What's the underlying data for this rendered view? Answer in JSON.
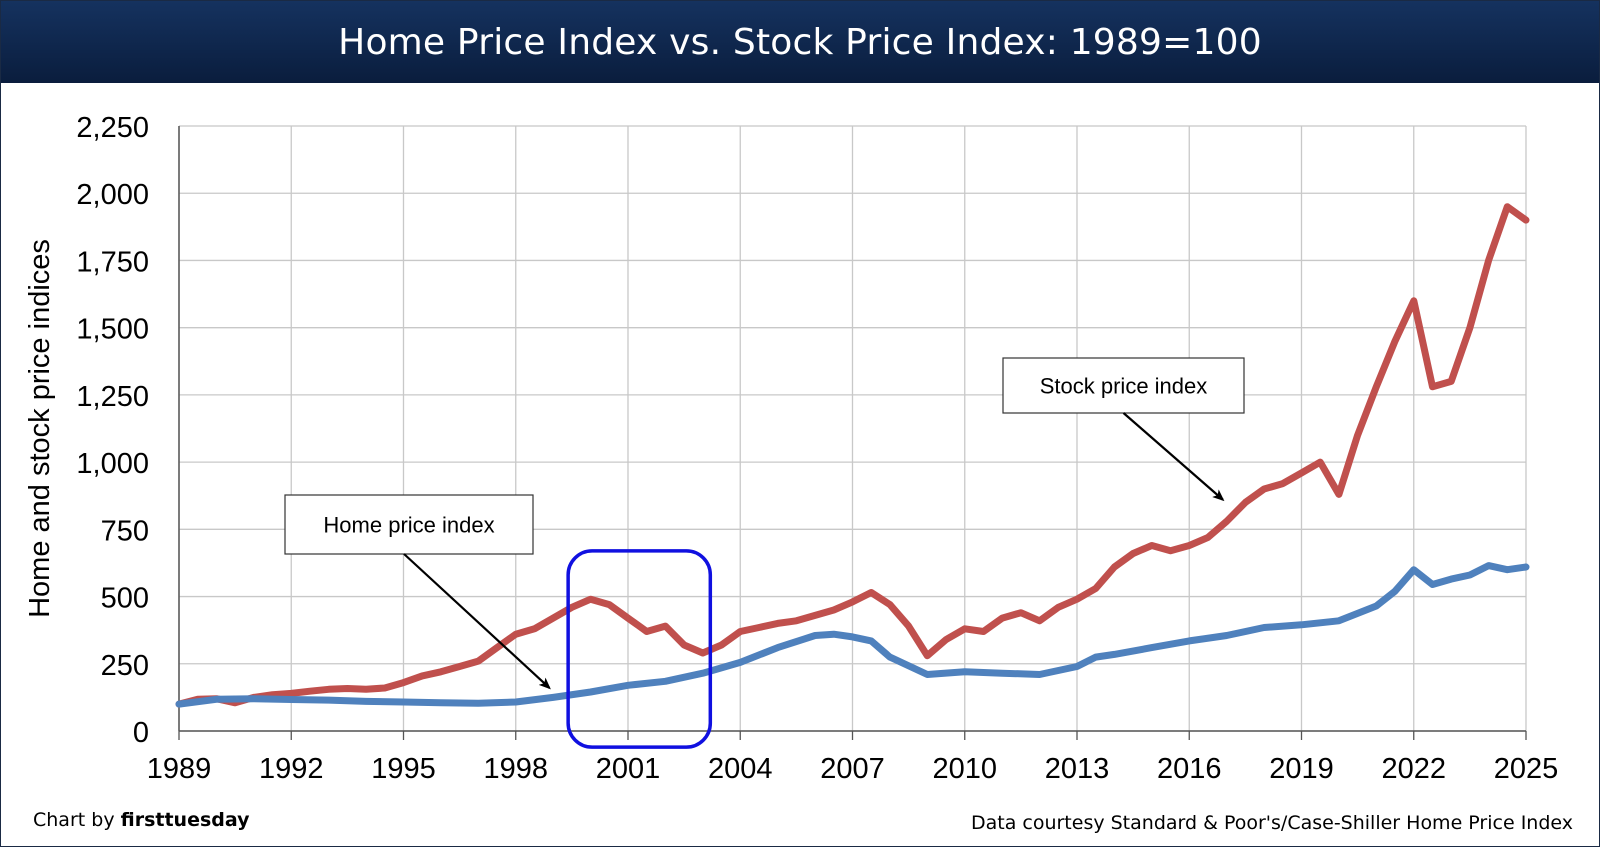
{
  "chart_data": {
    "type": "line",
    "title": "Home Price Index vs. Stock Price Index: 1989=100",
    "xlabel": "",
    "ylabel": "Home and stock price indices",
    "xlim": [
      1989,
      2025
    ],
    "ylim": [
      0,
      2250
    ],
    "x_ticks": [
      "1989",
      "1992",
      "1995",
      "1998",
      "2001",
      "2004",
      "2007",
      "2010",
      "2013",
      "2016",
      "2019",
      "2022",
      "2025"
    ],
    "y_ticks": [
      "0",
      "250",
      "500",
      "750",
      "1,000",
      "1,250",
      "1,500",
      "1,750",
      "2,000",
      "2,250"
    ],
    "grid": true,
    "colors": {
      "stock": "#c0504d",
      "home": "#4f81bd",
      "highlight": "#1010e0"
    },
    "series": [
      {
        "name": "Stock price index",
        "x": [
          1989,
          1989.5,
          1990,
          1990.5,
          1991,
          1991.5,
          1992,
          1992.5,
          1993,
          1993.5,
          1994,
          1994.5,
          1995,
          1995.5,
          1996,
          1996.5,
          1997,
          1997.5,
          1998,
          1998.5,
          1999,
          1999.5,
          2000,
          2000.5,
          2001,
          2001.5,
          2002,
          2002.5,
          2003,
          2003.5,
          2004,
          2004.5,
          2005,
          2005.5,
          2006,
          2006.5,
          2007,
          2007.5,
          2008,
          2008.5,
          2009,
          2009.5,
          2010,
          2010.5,
          2011,
          2011.5,
          2012,
          2012.5,
          2013,
          2013.5,
          2014,
          2014.5,
          2015,
          2015.5,
          2016,
          2016.5,
          2017,
          2017.5,
          2018,
          2018.5,
          2019,
          2019.5,
          2020,
          2020.5,
          2021,
          2021.5,
          2022,
          2022.5,
          2023,
          2023.5,
          2024,
          2024.5,
          2025
        ],
        "values": [
          100,
          118,
          120,
          105,
          125,
          135,
          140,
          148,
          155,
          158,
          155,
          160,
          180,
          205,
          220,
          240,
          260,
          310,
          360,
          380,
          420,
          460,
          490,
          470,
          420,
          370,
          390,
          320,
          290,
          320,
          370,
          385,
          400,
          410,
          430,
          450,
          480,
          515,
          470,
          390,
          280,
          340,
          380,
          370,
          420,
          440,
          410,
          460,
          490,
          530,
          610,
          660,
          690,
          670,
          690,
          720,
          780,
          850,
          900,
          920,
          960,
          1000,
          880,
          1100,
          1280,
          1450,
          1600,
          1280,
          1300,
          1500,
          1750,
          1950,
          1900
        ]
      },
      {
        "name": "Home price index",
        "x": [
          1989,
          1990,
          1991,
          1992,
          1993,
          1994,
          1995,
          1996,
          1997,
          1998,
          1999,
          2000,
          2001,
          2002,
          2003,
          2004,
          2005,
          2006,
          2006.5,
          2007,
          2007.5,
          2008,
          2009,
          2010,
          2011,
          2012,
          2013,
          2013.5,
          2014,
          2015,
          2016,
          2017,
          2018,
          2019,
          2020,
          2021,
          2021.5,
          2022,
          2022.5,
          2023,
          2023.5,
          2024,
          2024.5,
          2025
        ],
        "values": [
          100,
          118,
          120,
          117,
          115,
          110,
          108,
          105,
          103,
          108,
          125,
          145,
          170,
          185,
          215,
          255,
          310,
          355,
          360,
          350,
          335,
          275,
          210,
          220,
          215,
          210,
          240,
          275,
          285,
          310,
          335,
          355,
          385,
          395,
          410,
          465,
          520,
          600,
          545,
          565,
          580,
          615,
          600,
          610
        ]
      }
    ],
    "annotations": [
      {
        "text": "Home price index",
        "target_year": 1998.9,
        "target_value": 160
      },
      {
        "text": "Stock price index",
        "target_year": 2016.9,
        "target_value": 860
      }
    ],
    "highlight_range": {
      "x_from": 1999.4,
      "x_to": 2003.2,
      "y_from": -60,
      "y_to": 670
    }
  },
  "credits": {
    "left_prefix": "Chart by ",
    "left_brand": "firsttuesday",
    "right": "Data courtesy Standard & Poor's/Case-Shiller Home Price Index"
  }
}
